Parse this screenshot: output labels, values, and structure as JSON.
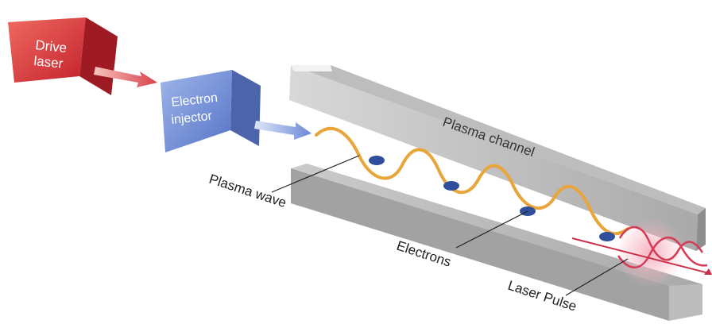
{
  "labels": {
    "drive_laser_line1": "Drive",
    "drive_laser_line2": "laser",
    "electron_injector_line1": "Electron",
    "electron_injector_line2": "injector",
    "plasma_channel": "Plasma channel",
    "plasma_wave": "Plasma wave",
    "electrons": "Electrons",
    "laser_pulse": "Laser Pulse"
  },
  "colors": {
    "drive_laser": "#d8323a",
    "electron_injector": "#5f7fcf",
    "channel": "#c8c8c8",
    "wave": "#e8a53a",
    "electron": "#2f4f9c",
    "laser_pulse": "#e0405a"
  }
}
